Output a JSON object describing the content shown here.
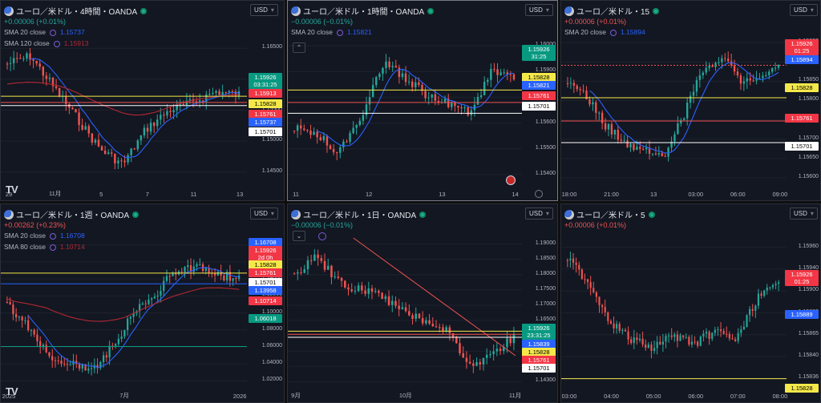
{
  "colors": {
    "up": "#26a69a",
    "down": "#ef5350",
    "sma_blue": "#2962ff",
    "sma_red": "#b22833",
    "pos_change": "#26a69a",
    "neg_change": "#ef5350",
    "tag_price_green": "#089981",
    "tag_yellow": "#f5e94a",
    "tag_blue": "#2962ff",
    "tag_red": "#f23645",
    "tag_white": "#ffffff"
  },
  "panels": [
    {
      "id": "4h",
      "title": "ユーロ／米ドル・4時間・OANDA",
      "change": "+0.00006 (+0.01%)",
      "change_dir": "up",
      "currency": "USD",
      "indicators": [
        {
          "label": "SMA 20 close",
          "value": "1.15737",
          "color": "#2962ff"
        },
        {
          "label": "SMA 120 close",
          "value": "1.15913",
          "color": "#b22833"
        }
      ],
      "y_ticks": [
        "1.16500",
        "1.16000",
        "1.15500",
        "1.15000",
        "1.14500"
      ],
      "x_ticks": [
        "29",
        "11月",
        "5",
        "7",
        "11",
        "13"
      ],
      "tags": [
        {
          "text": "1.15926",
          "sub": "03:31:25",
          "style": "price"
        },
        {
          "text": "1.15913",
          "style": "red"
        },
        {
          "text": "1.15828",
          "style": "yellow"
        },
        {
          "text": "1.15761",
          "style": "red"
        },
        {
          "text": "1.15737",
          "style": "blue"
        },
        {
          "text": "1.15701",
          "style": "white"
        }
      ],
      "logo": "TV"
    },
    {
      "id": "1h",
      "title": "ユーロ／米ドル・1時間・OANDA",
      "change": "−0.00006 (−0.01%)",
      "change_dir": "up",
      "currency": "USD",
      "indicators": [
        {
          "label": "SMA 20 close",
          "value": "1.15821",
          "color": "#2962ff"
        }
      ],
      "y_ticks": [
        "1.16000",
        "1.15900",
        "1.15700",
        "1.15600",
        "1.15500",
        "1.15400"
      ],
      "x_ticks": [
        "11",
        "12",
        "13",
        "14"
      ],
      "tags": [
        {
          "text": "1.15926",
          "sub": "31:25",
          "style": "price"
        },
        {
          "text": "1.15828",
          "style": "yellow"
        },
        {
          "text": "1.15821",
          "style": "blue"
        },
        {
          "text": "1.15761",
          "style": "red"
        },
        {
          "text": "1.15701",
          "style": "white"
        }
      ]
    },
    {
      "id": "15",
      "title": "ユーロ／米ドル・15",
      "change": "+0.00006 (+0.01%)",
      "change_dir": "down",
      "currency": "USD",
      "indicators": [
        {
          "label": "SMA 20 close",
          "value": "1.15894",
          "color": "#2962ff"
        }
      ],
      "y_ticks": [
        "1.15950",
        "1.15900",
        "1.15850",
        "1.15800",
        "1.15750",
        "1.15700",
        "1.15650",
        "1.15600"
      ],
      "x_ticks": [
        "18:00",
        "21:00",
        "13",
        "03:00",
        "06:00",
        "09:00"
      ],
      "tags": [
        {
          "text": "1.15926",
          "sub": "01:25",
          "style": "red"
        },
        {
          "text": "1.15894",
          "style": "blue"
        },
        {
          "text": "1.15828",
          "style": "yellow"
        },
        {
          "text": "1.15761",
          "style": "red"
        },
        {
          "text": "1.15701",
          "style": "white"
        }
      ]
    },
    {
      "id": "1w",
      "title": "ユーロ／米ドル・1週・OANDA",
      "change": "+0.00262 (+0.23%)",
      "change_dir": "down",
      "currency": "USD",
      "indicators": [
        {
          "label": "SMA 20 close",
          "value": "1.16708",
          "color": "#2962ff"
        },
        {
          "label": "SMA 80 close",
          "value": "1.10714",
          "color": "#b22833"
        }
      ],
      "y_ticks": [
        "1.18000",
        "1.16000",
        "1.14000",
        "1.12000",
        "1.10000",
        "1.08000",
        "1.06000",
        "1.04000",
        "1.02000"
      ],
      "x_ticks": [
        "2025",
        "7月",
        "2026"
      ],
      "tags": [
        {
          "text": "1.16708",
          "style": "blue"
        },
        {
          "text": "1.15926",
          "sub": "2d 0h",
          "style": "red"
        },
        {
          "text": "1.15828",
          "style": "yellow"
        },
        {
          "text": "1.15761",
          "style": "red"
        },
        {
          "text": "1.15701",
          "style": "white"
        },
        {
          "text": "1.13958",
          "style": "blue"
        },
        {
          "text": "1.10714",
          "style": "red"
        },
        {
          "text": "1.06018",
          "style": "price"
        }
      ],
      "logo": "TV"
    },
    {
      "id": "1d",
      "title": "ユーロ／米ドル・1日・OANDA",
      "change": "−0.00006 (−0.01%)",
      "change_dir": "up",
      "currency": "USD",
      "indicators": [],
      "y_ticks": [
        "1.19000",
        "1.18500",
        "1.18000",
        "1.17500",
        "1.17000",
        "1.16500",
        "1.16000",
        "1.15500",
        "1.15000",
        "1.14300"
      ],
      "x_ticks": [
        "9月",
        "10月",
        "11月"
      ],
      "tags": [
        {
          "text": "1.15926",
          "sub": "23:31:25",
          "style": "price"
        },
        {
          "text": "1.15839",
          "style": "blue"
        },
        {
          "text": "1.15828",
          "style": "yellow"
        },
        {
          "text": "1.15761",
          "style": "red"
        },
        {
          "text": "1.15701",
          "style": "white"
        }
      ]
    },
    {
      "id": "5",
      "title": "ユーロ／米ドル・5",
      "change": "+0.00006 (+0.01%)",
      "change_dir": "down",
      "currency": "USD",
      "indicators": [],
      "y_ticks": [
        "1.15960",
        "1.15940",
        "1.15900",
        "1.15880",
        "1.15865",
        "1.15840",
        "1.15836"
      ],
      "x_ticks": [
        "03:00",
        "04:00",
        "05:00",
        "06:00",
        "07:00",
        "08:00"
      ],
      "tags": [
        {
          "text": "1.15926",
          "sub": "01:25",
          "style": "red"
        },
        {
          "text": "1.15889",
          "style": "blue"
        },
        {
          "text": "1.15828",
          "style": "yellow"
        }
      ]
    }
  ]
}
